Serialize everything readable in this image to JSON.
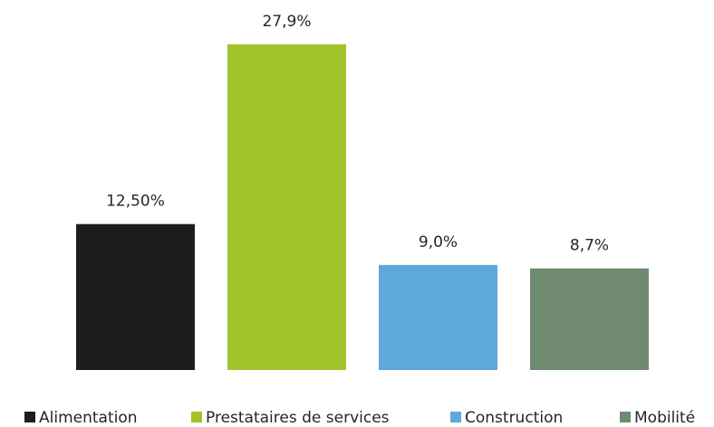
{
  "chart_data": {
    "type": "bar",
    "categories": [
      null
    ],
    "series": [
      {
        "name": "Alimentation",
        "color": "#1d1d1b",
        "values": [
          12.5
        ],
        "value_labels": [
          "12,50%"
        ]
      },
      {
        "name": "Prestataires de services",
        "color": "#a0c42a",
        "values": [
          27.9
        ],
        "value_labels": [
          "27,9%"
        ]
      },
      {
        "name": "Construction",
        "color": "#5fa8dc",
        "values": [
          9.0
        ],
        "value_labels": [
          "9,0%"
        ]
      },
      {
        "name": "Mobilité",
        "color": "#6f8a6f",
        "values": [
          8.7
        ],
        "value_labels": [
          "8,7%"
        ]
      }
    ]
  }
}
